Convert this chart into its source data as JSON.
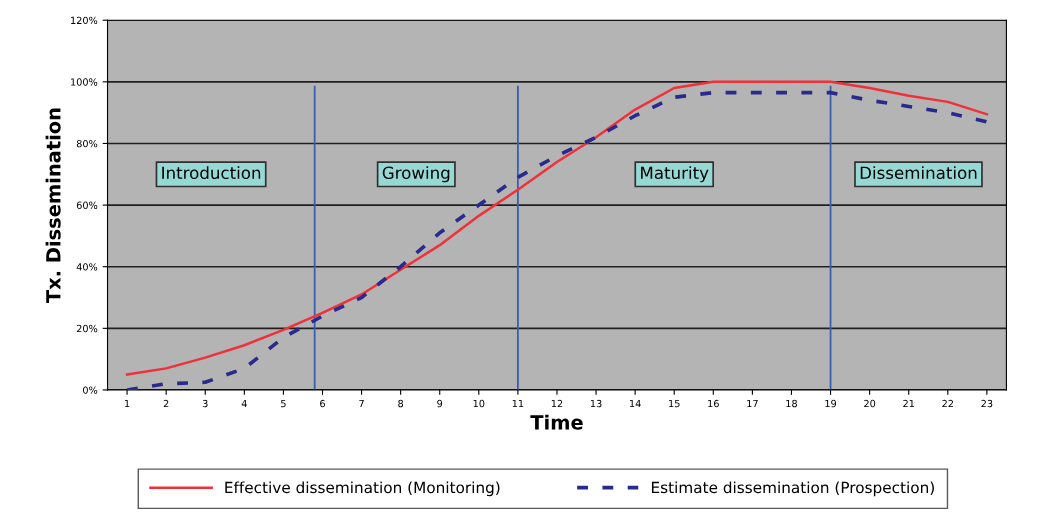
{
  "chart_data": {
    "type": "line",
    "xlabel": "Time",
    "ylabel": "Tx. Dissemination",
    "x": [
      1,
      2,
      3,
      4,
      5,
      6,
      7,
      8,
      9,
      10,
      11,
      12,
      13,
      14,
      15,
      16,
      17,
      18,
      19,
      20,
      21,
      22,
      23
    ],
    "series": [
      {
        "name": "Effective dissemination (Monitoring)",
        "color": "#f0303a",
        "line_style": "solid",
        "values": [
          5,
          7,
          10.5,
          14.5,
          19.5,
          25,
          31,
          39,
          47,
          56.5,
          65,
          74,
          82,
          91,
          98,
          100,
          100,
          100,
          100,
          98,
          95.5,
          93.5,
          89.5
        ]
      },
      {
        "name": "Estimate dissemination (Prospection)",
        "color": "#2a2a8c",
        "line_style": "dashed",
        "values": [
          0,
          2,
          2.5,
          7,
          17,
          24,
          30,
          40,
          51,
          60,
          69,
          76,
          82,
          89,
          95,
          96.5,
          96.5,
          96.5,
          96.5,
          94,
          92,
          90,
          87
        ]
      }
    ],
    "xlim": [
      0.5,
      23.5
    ],
    "xticks": [
      1,
      2,
      3,
      4,
      5,
      6,
      7,
      8,
      9,
      10,
      11,
      12,
      13,
      14,
      15,
      16,
      17,
      18,
      19,
      20,
      21,
      22,
      23
    ],
    "ylim": [
      0,
      120
    ],
    "yticks": [
      {
        "value": 0,
        "label": "0%"
      },
      {
        "value": 20,
        "label": "20%"
      },
      {
        "value": 40,
        "label": "40%"
      },
      {
        "value": 60,
        "label": "60%"
      },
      {
        "value": 80,
        "label": "80%"
      },
      {
        "value": 100,
        "label": "100%"
      },
      {
        "value": 120,
        "label": "120%"
      }
    ],
    "ref_lines": [
      {
        "axis": "x",
        "value": 5.8,
        "color": "#3a5fb0"
      },
      {
        "axis": "x",
        "value": 11,
        "color": "#3a5fb0"
      },
      {
        "axis": "x",
        "value": 19,
        "color": "#3a5fb0"
      }
    ],
    "annotations": [
      "Introduction",
      "Growing",
      "Maturity",
      "Dissemination"
    ],
    "grid": "y",
    "legend": "bottom"
  }
}
